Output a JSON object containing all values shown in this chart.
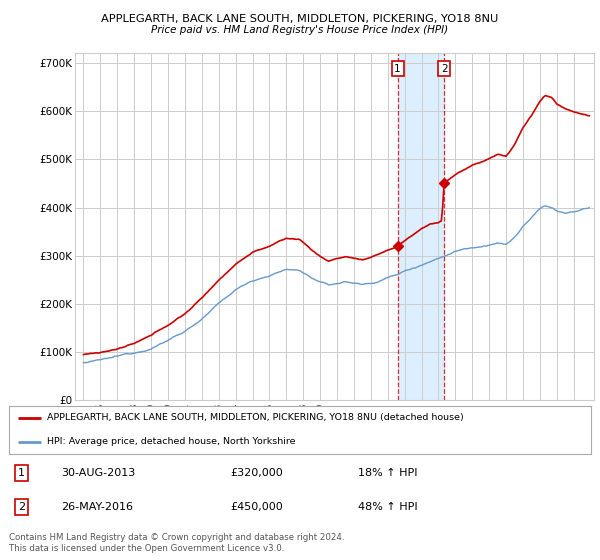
{
  "title1": "APPLEGARTH, BACK LANE SOUTH, MIDDLETON, PICKERING, YO18 8NU",
  "title2": "Price paid vs. HM Land Registry's House Price Index (HPI)",
  "legend_line1": "APPLEGARTH, BACK LANE SOUTH, MIDDLETON, PICKERING, YO18 8NU (detached house)",
  "legend_line2": "HPI: Average price, detached house, North Yorkshire",
  "annotation1": {
    "num": "1",
    "date": "30-AUG-2013",
    "price": "£320,000",
    "hpi": "18% ↑ HPI"
  },
  "annotation2": {
    "num": "2",
    "date": "26-MAY-2016",
    "price": "£450,000",
    "hpi": "48% ↑ HPI"
  },
  "copyright": "Contains HM Land Registry data © Crown copyright and database right 2024.\nThis data is licensed under the Open Government Licence v3.0.",
  "ylim": [
    0,
    720000
  ],
  "yticks": [
    0,
    100000,
    200000,
    300000,
    400000,
    500000,
    600000,
    700000
  ],
  "ytick_labels": [
    "£0",
    "£100K",
    "£200K",
    "£300K",
    "£400K",
    "£500K",
    "£600K",
    "£700K"
  ],
  "red_color": "#cc0000",
  "blue_color": "#6699cc",
  "background_color": "#ffffff",
  "grid_color": "#cccccc",
  "shade_color": "#ddeeff",
  "t1": 2013.583,
  "t2": 2016.333,
  "v1": 320000,
  "v2": 450000
}
